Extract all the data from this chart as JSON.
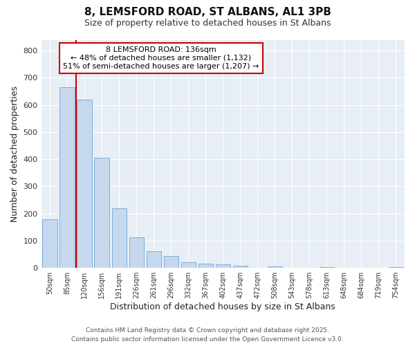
{
  "title_line1": "8, LEMSFORD ROAD, ST ALBANS, AL1 3PB",
  "title_line2": "Size of property relative to detached houses in St Albans",
  "xlabel": "Distribution of detached houses by size in St Albans",
  "ylabel": "Number of detached properties",
  "categories": [
    "50sqm",
    "85sqm",
    "120sqm",
    "156sqm",
    "191sqm",
    "226sqm",
    "261sqm",
    "296sqm",
    "332sqm",
    "367sqm",
    "402sqm",
    "437sqm",
    "472sqm",
    "508sqm",
    "543sqm",
    "578sqm",
    "613sqm",
    "648sqm",
    "684sqm",
    "719sqm",
    "754sqm"
  ],
  "values": [
    180,
    665,
    620,
    405,
    220,
    113,
    62,
    45,
    20,
    15,
    12,
    8,
    0,
    6,
    0,
    0,
    4,
    0,
    0,
    0,
    4
  ],
  "bar_color": "#c5d8ee",
  "bar_edge_color": "#7bafd4",
  "figure_bg": "#ffffff",
  "axes_bg": "#e8eef5",
  "grid_color": "#ffffff",
  "red_line_x": 2,
  "annotation_title": "8 LEMSFORD ROAD: 136sqm",
  "annotation_line2": "← 48% of detached houses are smaller (1,132)",
  "annotation_line3": "51% of semi-detached houses are larger (1,207) →",
  "annotation_box_facecolor": "#ffffff",
  "annotation_box_edgecolor": "#cc0000",
  "ylim": [
    0,
    840
  ],
  "yticks": [
    0,
    100,
    200,
    300,
    400,
    500,
    600,
    700,
    800
  ],
  "footer_line1": "Contains HM Land Registry data © Crown copyright and database right 2025.",
  "footer_line2": "Contains public sector information licensed under the Open Government Licence v3.0.",
  "footer_color": "#555555",
  "title_fontsize": 11,
  "subtitle_fontsize": 9
}
